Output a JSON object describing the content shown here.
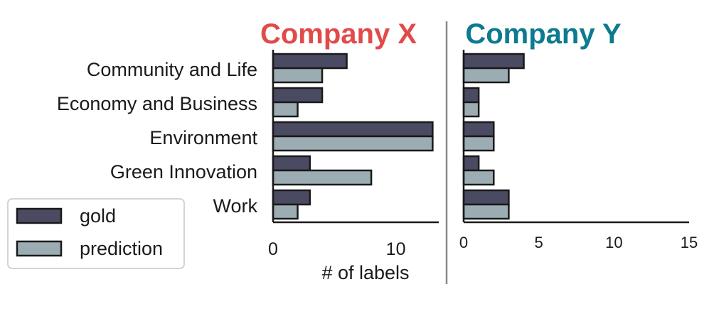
{
  "chart_data": [
    {
      "type": "bar",
      "orientation": "horizontal",
      "title": "Company X",
      "title_color": "#E24A4A",
      "categories": [
        "Community and Life",
        "Economy and Business",
        "Environment",
        "Green Innovation",
        "Work"
      ],
      "series": [
        {
          "name": "gold",
          "color": "#4A4A63",
          "values": [
            6,
            4,
            13,
            3,
            3
          ]
        },
        {
          "name": "prediction",
          "color": "#9BADB2",
          "values": [
            4,
            2,
            13,
            8,
            2
          ]
        }
      ],
      "xlabel": "# of labels",
      "xlim": [
        0,
        13.5
      ],
      "xticks": [
        0,
        10
      ],
      "grid": false
    },
    {
      "type": "bar",
      "orientation": "horizontal",
      "title": "Company Y",
      "title_color": "#0C7A8F",
      "categories": [
        "Community and Life",
        "Economy and Business",
        "Environment",
        "Green Innovation",
        "Work"
      ],
      "series": [
        {
          "name": "gold",
          "color": "#4A4A63",
          "values": [
            4,
            1,
            2,
            1,
            3
          ]
        },
        {
          "name": "prediction",
          "color": "#9BADB2",
          "values": [
            3,
            1,
            2,
            2,
            3
          ]
        }
      ],
      "xlabel": "",
      "xlim": [
        0,
        15
      ],
      "xticks": [
        0,
        5,
        10,
        15
      ],
      "grid": false
    }
  ],
  "legend": {
    "placement": "lower-left",
    "entries": [
      {
        "label": "gold",
        "color": "#4A4A63"
      },
      {
        "label": "prediction",
        "color": "#9BADB2"
      }
    ]
  },
  "colors": {
    "bar_edge": "#1a1a1a",
    "divider": "#8a8a8a",
    "axis": "#1a1a1a"
  }
}
